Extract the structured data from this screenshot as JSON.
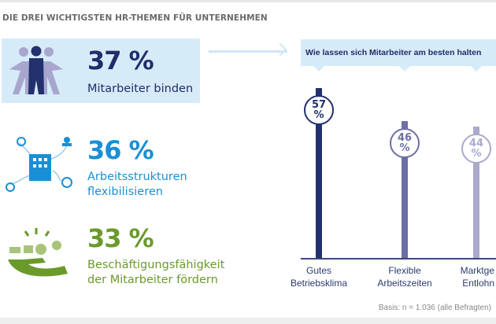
{
  "header": {
    "title": "DIE DREI WICHTIGSTEN HR-THEMEN FÜR UNTERNEHMEN"
  },
  "topics": [
    {
      "percent": "37 %",
      "label_lines": [
        "Mitarbeiter binden"
      ],
      "color": "#1f2d6b",
      "icon": "people-group-icon"
    },
    {
      "percent": "36 %",
      "label_lines": [
        "Arbeitsstrukturen",
        "flexibilisieren"
      ],
      "color": "#1a8fd6",
      "icon": "office-network-icon"
    },
    {
      "percent": "33 %",
      "label_lines": [
        "Beschäftigungsfähigkeit",
        "der Mitarbeiter fördern"
      ],
      "color": "#6a9a2a",
      "icon": "hand-with-benefits-icon"
    }
  ],
  "chart_data": {
    "type": "bar",
    "title": "Wie lassen sich Mitarbeiter am besten halten",
    "categories": [
      [
        "Gutes",
        "Betriebsklima"
      ],
      [
        "Flexible",
        "Arbeitszeiten"
      ],
      [
        "Marktge",
        "Entlohn"
      ]
    ],
    "values": [
      57,
      46,
      44
    ],
    "value_labels": [
      [
        "57",
        "%"
      ],
      [
        "46",
        "%"
      ],
      [
        "44",
        "%"
      ]
    ],
    "colors": [
      "#22306e",
      "#6c6fa6",
      "#a9aacd"
    ],
    "ylim": [
      0,
      57
    ]
  },
  "footer": {
    "basis": "Basis: n = 1.036 (alle Befragten)"
  }
}
